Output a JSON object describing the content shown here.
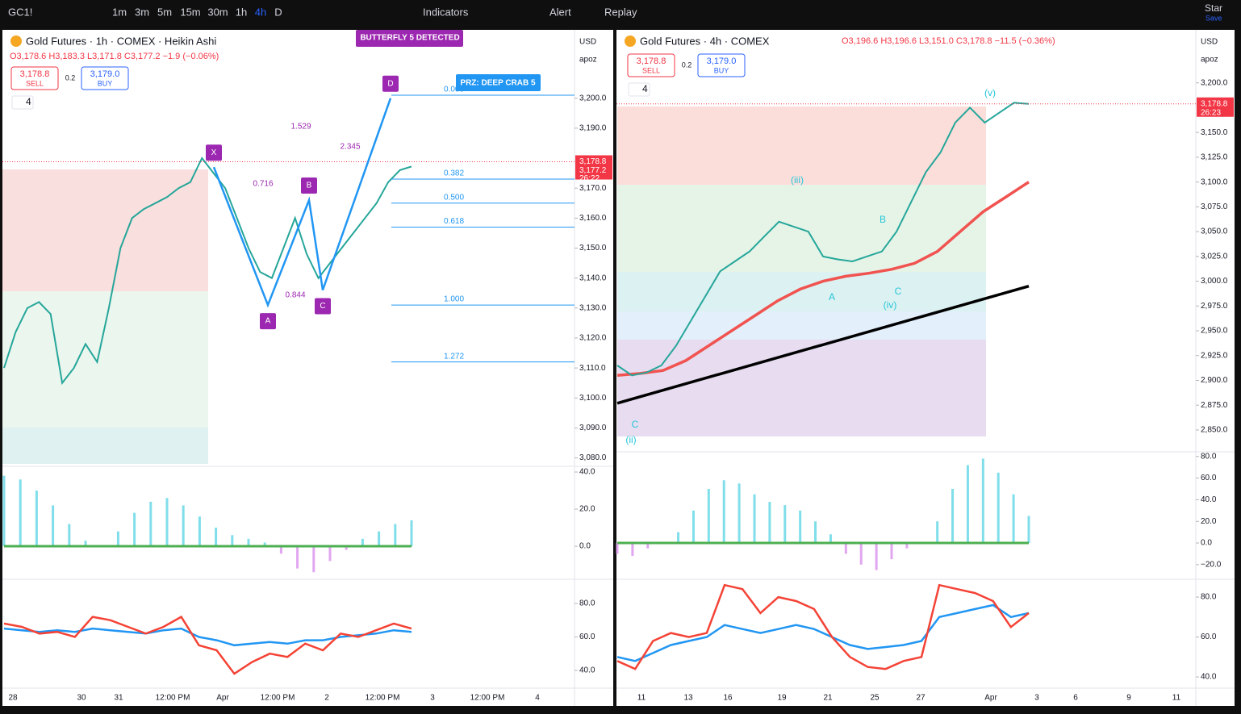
{
  "toolbar": {
    "symbol": "GC1!",
    "intervals": [
      "1m",
      "3m",
      "5m",
      "15m",
      "30m",
      "1h",
      "4h",
      "D"
    ],
    "indicators": "Indicators",
    "alert": "Alert",
    "replay": "Replay",
    "star": "Star",
    "save": "Save"
  },
  "left": {
    "title": "Gold Futures · 1h · COMEX · Heikin Ashi",
    "ohlc": "O3,178.6 H3,183.3 L3,171.8 C3,177.2 −1.9 (−0.06%)",
    "sell_price": "3,178.8",
    "sell": "SELL",
    "qty": "0.2",
    "buy_price": "3,179.0",
    "buy": "BUY",
    "count": "4",
    "currency": "USD",
    "scale": "apoz",
    "banner": "BUTTERFLY 5 DETECTED",
    "prz": "PRZ: DEEP CRAB 5",
    "points": [
      {
        "label": "X",
        "price": 3177
      },
      {
        "label": "A",
        "price": 3131
      },
      {
        "label": "B",
        "price": 3166
      },
      {
        "label": "C",
        "price": 3136
      },
      {
        "label": "D",
        "price": 3200
      }
    ],
    "ratios": [
      "1.529",
      "0.716",
      "2.345",
      "0.844"
    ],
    "fib": [
      {
        "label": "0.000",
        "price": 3201
      },
      {
        "label": "0.382",
        "price": 3173
      },
      {
        "label": "0.500",
        "price": 3165
      },
      {
        "label": "0.618",
        "price": 3157
      },
      {
        "label": "1.000",
        "price": 3131
      },
      {
        "label": "1.272",
        "price": 3112
      }
    ],
    "ylim": [
      3078,
      3222
    ],
    "yticks": [
      {
        "value": 3200,
        "label": "3,200.0"
      },
      {
        "value": 3190,
        "label": "3,190.0"
      },
      {
        "value": 3170,
        "label": "3,170.0"
      },
      {
        "value": 3160,
        "label": "3,160.0"
      },
      {
        "value": 3150,
        "label": "3,150.0"
      },
      {
        "value": 3140,
        "label": "3,140.0"
      },
      {
        "value": 3130,
        "label": "3,130.0"
      },
      {
        "value": 3120,
        "label": "3,120.0"
      },
      {
        "value": 3110,
        "label": "3,110.0"
      },
      {
        "value": 3100,
        "label": "3,100.0"
      },
      {
        "value": 3090,
        "label": "3,090.0"
      },
      {
        "value": 3080,
        "label": "3,080.0"
      }
    ],
    "last_price": "3,178.8",
    "close_price": "3,177.2",
    "countdown": "26:22",
    "closes": [
      3110,
      3122,
      3130,
      3132,
      3128,
      3105,
      3110,
      3118,
      3112,
      3130,
      3150,
      3160,
      3163,
      3165,
      3167,
      3170,
      3172,
      3180,
      3175,
      3170,
      3160,
      3150,
      3142,
      3140,
      3150,
      3160,
      3148,
      3140,
      3145,
      3150,
      3155,
      3160,
      3165,
      3172,
      3176,
      3177.2
    ],
    "osc_ylim": [
      -16.5,
      42.2
    ],
    "osc_yticks": [
      {
        "value": 40,
        "label": "40.0"
      },
      {
        "value": 20,
        "label": "20.0"
      },
      {
        "value": 0,
        "label": "0.0"
      }
    ],
    "osc": [
      38,
      36,
      30,
      22,
      12,
      3,
      0,
      8,
      18,
      24,
      26,
      22,
      16,
      10,
      6,
      4,
      2,
      -4,
      -12,
      -14,
      -8,
      -2,
      4,
      8,
      12,
      14
    ],
    "rsi_ylim": [
      30.8,
      93.5
    ],
    "rsi_yticks": [
      {
        "value": 80,
        "label": "80.0"
      },
      {
        "value": 60,
        "label": "60.0"
      },
      {
        "value": 40,
        "label": "40.0"
      }
    ],
    "rsi_red": [
      68,
      66,
      62,
      63,
      60,
      72,
      70,
      66,
      62,
      66,
      72,
      55,
      52,
      38,
      45,
      50,
      48,
      56,
      52,
      62,
      60,
      64,
      68,
      65
    ],
    "rsi_blue": [
      65,
      64,
      63,
      64,
      63,
      65,
      64,
      63,
      62,
      64,
      65,
      60,
      58,
      55,
      56,
      57,
      56,
      58,
      58,
      60,
      61,
      62,
      64,
      63
    ],
    "xticks": [
      "28",
      "30",
      "31",
      "12:00 PM",
      "Apr",
      "12:00 PM",
      "2",
      "12:00 PM",
      "3",
      "12:00 PM",
      "4"
    ]
  },
  "right": {
    "title": "Gold Futures · 4h · COMEX",
    "ohlc": "O3,196.6 H3,196.6 L3,151.0 C3,178.8 −11.5 (−0.36%)",
    "sell_price": "3,178.8",
    "sell": "SELL",
    "qty": "0.2",
    "buy_price": "3,179.0",
    "buy": "BUY",
    "count": "4",
    "currency": "USD",
    "scale": "apoz",
    "waves": [
      "(v)",
      "(iii)",
      "(ii)",
      "(iv)",
      "A",
      "B",
      "C",
      "C"
    ],
    "ylim": [
      2828,
      3251
    ],
    "yticks": [
      {
        "value": 3200,
        "label": "3,200.0"
      },
      {
        "value": 3150,
        "label": "3,150.0"
      },
      {
        "value": 3125,
        "label": "3,125.0"
      },
      {
        "value": 3100,
        "label": "3,100.0"
      },
      {
        "value": 3075,
        "label": "3,075.0"
      },
      {
        "value": 3050,
        "label": "3,050.0"
      },
      {
        "value": 3025,
        "label": "3,025.0"
      },
      {
        "value": 3000,
        "label": "3,000.0"
      },
      {
        "value": 2975,
        "label": "2,975.0"
      },
      {
        "value": 2950,
        "label": "2,950.0"
      },
      {
        "value": 2925,
        "label": "2,925.0"
      },
      {
        "value": 2900,
        "label": "2,900.0"
      },
      {
        "value": 2875,
        "label": "2,875.0"
      },
      {
        "value": 2850,
        "label": "2,850.0"
      }
    ],
    "last_price": "3,178.8",
    "countdown": "26:23",
    "closes": [
      2915,
      2905,
      2908,
      2915,
      2935,
      2960,
      2985,
      3010,
      3020,
      3030,
      3045,
      3060,
      3055,
      3050,
      3025,
      3022,
      3020,
      3025,
      3030,
      3050,
      3080,
      3110,
      3130,
      3160,
      3175,
      3160,
      3170,
      3180,
      3178.8
    ],
    "ma_red": [
      2905,
      2907,
      2910,
      2920,
      2935,
      2950,
      2965,
      2980,
      2992,
      3000,
      3005,
      3008,
      3012,
      3018,
      3030,
      3050,
      3070,
      3085,
      3100
    ],
    "ma_black": [
      2877,
      2995
    ],
    "osc_ylim": [
      -31.3,
      82.8
    ],
    "osc_yticks": [
      {
        "value": 80,
        "label": "80.0"
      },
      {
        "value": 60,
        "label": "60.0"
      },
      {
        "value": 40,
        "label": "40.0"
      },
      {
        "value": 20,
        "label": "20.0"
      },
      {
        "value": 0,
        "label": "0.0"
      },
      {
        "value": -20,
        "label": "−20.0"
      }
    ],
    "osc": [
      -10,
      -12,
      -5,
      0,
      10,
      30,
      50,
      58,
      55,
      45,
      38,
      35,
      30,
      20,
      8,
      -10,
      -20,
      -25,
      -15,
      -5,
      0,
      20,
      50,
      72,
      78,
      65,
      45,
      25
    ],
    "rsi_ylim": [
      35.6,
      88.1
    ],
    "rsi_yticks": [
      {
        "value": 80,
        "label": "80.0"
      },
      {
        "value": 60,
        "label": "60.0"
      },
      {
        "value": 40,
        "label": "40.0"
      }
    ],
    "rsi_red": [
      48,
      44,
      58,
      62,
      60,
      62,
      86,
      84,
      72,
      80,
      78,
      74,
      60,
      50,
      45,
      44,
      48,
      50,
      86,
      84,
      82,
      78,
      65,
      72
    ],
    "rsi_blue": [
      50,
      48,
      52,
      56,
      58,
      60,
      66,
      64,
      62,
      64,
      66,
      64,
      60,
      56,
      54,
      55,
      56,
      58,
      70,
      72,
      74,
      76,
      70,
      72
    ],
    "xticks": [
      "11",
      "13",
      "16",
      "19",
      "21",
      "25",
      "27",
      "Apr",
      "3",
      "6",
      "9",
      "11"
    ]
  }
}
